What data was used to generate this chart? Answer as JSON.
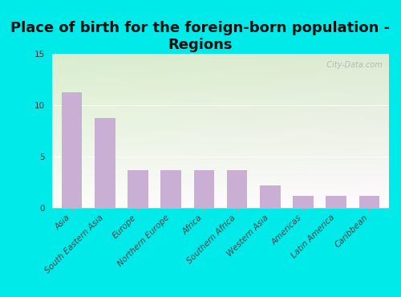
{
  "title": "Place of birth for the foreign-born population -\nRegions",
  "categories": [
    "Asia",
    "South Eastern Asia",
    "Europe",
    "Northern Europe",
    "Africa",
    "Southern Africa",
    "Western Asia",
    "Americas",
    "Latin America",
    "Caribbean"
  ],
  "values": [
    11.2,
    8.7,
    3.7,
    3.7,
    3.7,
    3.7,
    2.2,
    1.2,
    1.2,
    1.2
  ],
  "bar_color": "#c9afd4",
  "background_outer": "#00eaea",
  "yticks": [
    0,
    5,
    10,
    15
  ],
  "ylim": [
    0,
    15
  ],
  "title_fontsize": 13,
  "tick_fontsize": 7.5,
  "watermark": "  City-Data.com"
}
